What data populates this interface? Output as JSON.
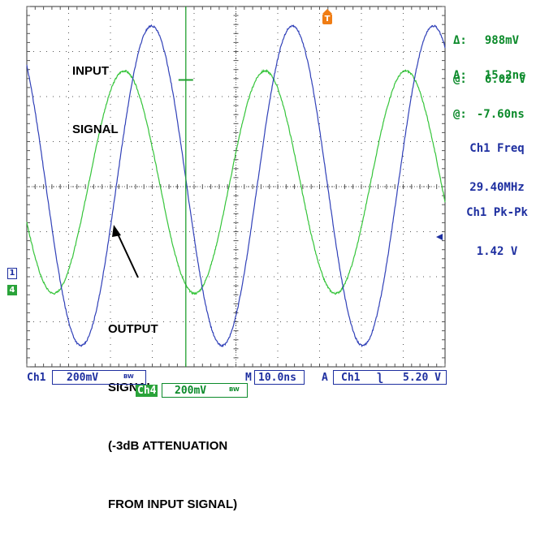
{
  "annotations": {
    "input_line1": "INPUT",
    "input_line2": "SIGNAL",
    "output_line1": "OUTPUT",
    "output_line2": "SIGNAL",
    "output_line3": "(-3dB ATTENUATION",
    "output_line4": "FROM INPUT SIGNAL)"
  },
  "cursor_readout": {
    "v_delta_symbol": "Δ:",
    "v_delta_value": "988mV",
    "v_at_symbol": "@:",
    "v_at_value": "6.02 V",
    "t_delta_symbol": "Δ:",
    "t_delta_value": "15.2ns",
    "t_at_symbol": "@:",
    "t_at_value": "-7.60ns"
  },
  "measurements": {
    "freq_label": "Ch1 Freq",
    "freq_value": "29.40MHz",
    "pkpk_label": "Ch1 Pk-Pk",
    "pkpk_value": "1.42 V"
  },
  "status_bar": {
    "ch1_label": "Ch1",
    "ch1_scale": "200mV",
    "ch1_bw": "BW",
    "timebase_prefix": "M",
    "timebase": "10.0ns",
    "trigger_mode": "A",
    "trigger_source": "Ch1",
    "trigger_slope": "ʅ",
    "trigger_level": "5.20 V",
    "ch4_label": "Ch4",
    "ch4_scale": "200mV",
    "ch4_bw": "BW"
  },
  "markers": {
    "ch1": "1",
    "ch4": "4",
    "trigger": "T"
  },
  "colors": {
    "input_trace": "#3040b8",
    "output_trace": "#35c43a",
    "cursor": "#22a030",
    "grid": "#555555",
    "text_blue": "#1e2fa0",
    "text_green": "#0b8a2a",
    "trigger_marker": "#f07d14"
  },
  "chart_data": {
    "type": "line",
    "x_unit": "ns",
    "xlim": [
      -46.0,
      55.0
    ],
    "y_unit": "divisions",
    "ylim": [
      -4,
      4
    ],
    "grid": true,
    "series": [
      {
        "name": "INPUT SIGNAL",
        "channel": "Ch1",
        "frequency_mhz": 29.4,
        "amplitude_div": 3.55,
        "offset_div": 0.02,
        "phase_deg": -102,
        "color": "#3040b8"
      },
      {
        "name": "OUTPUT SIGNAL",
        "channel": "Ch4",
        "frequency_mhz": 29.4,
        "amplitude_div": 2.47,
        "offset_div": 0.1,
        "phase_deg": -32,
        "color": "#35c43a"
      }
    ],
    "cursors": {
      "time_ns": -7.6,
      "level_div": 2.37
    }
  }
}
